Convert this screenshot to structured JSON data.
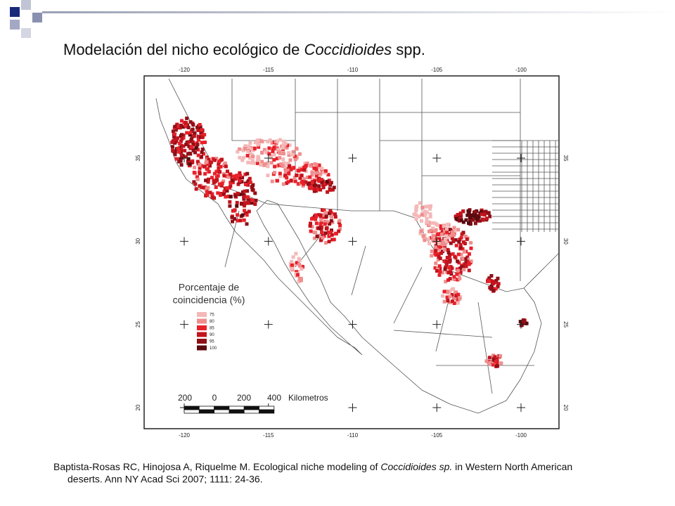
{
  "header": {
    "title_pre": "Modelación del nicho ecológico de ",
    "title_italic": "Coccidioides",
    "title_post": " spp."
  },
  "map": {
    "lon_ticks": [
      -120,
      -115,
      -110,
      -105,
      -100
    ],
    "lat_ticks": [
      35,
      30,
      25,
      20
    ],
    "legend": {
      "title_line1": "Porcentaje de",
      "title_line2": "coincidencia (%)",
      "items": [
        {
          "label": 75,
          "color": "#f4b8b8"
        },
        {
          "label": 80,
          "color": "#ef8d8d"
        },
        {
          "label": 85,
          "color": "#e8202a"
        },
        {
          "label": 90,
          "color": "#c3141d"
        },
        {
          "label": 95,
          "color": "#8f0f17"
        },
        {
          "label": 100,
          "color": "#5a0a0e"
        }
      ]
    },
    "scale_bar": {
      "labels": [
        200,
        0,
        200,
        400
      ],
      "unit": "Kilometros"
    }
  },
  "citation": {
    "line1_pre": "Baptista-Rosas RC, Hinojosa A, Riquelme M. Ecological niche modeling of ",
    "line1_italic": "Coccidioides sp.",
    "line1_post": " in Western North American",
    "line2": "deserts. Ann NY Acad Sci 2007; 1111: 24-36."
  }
}
